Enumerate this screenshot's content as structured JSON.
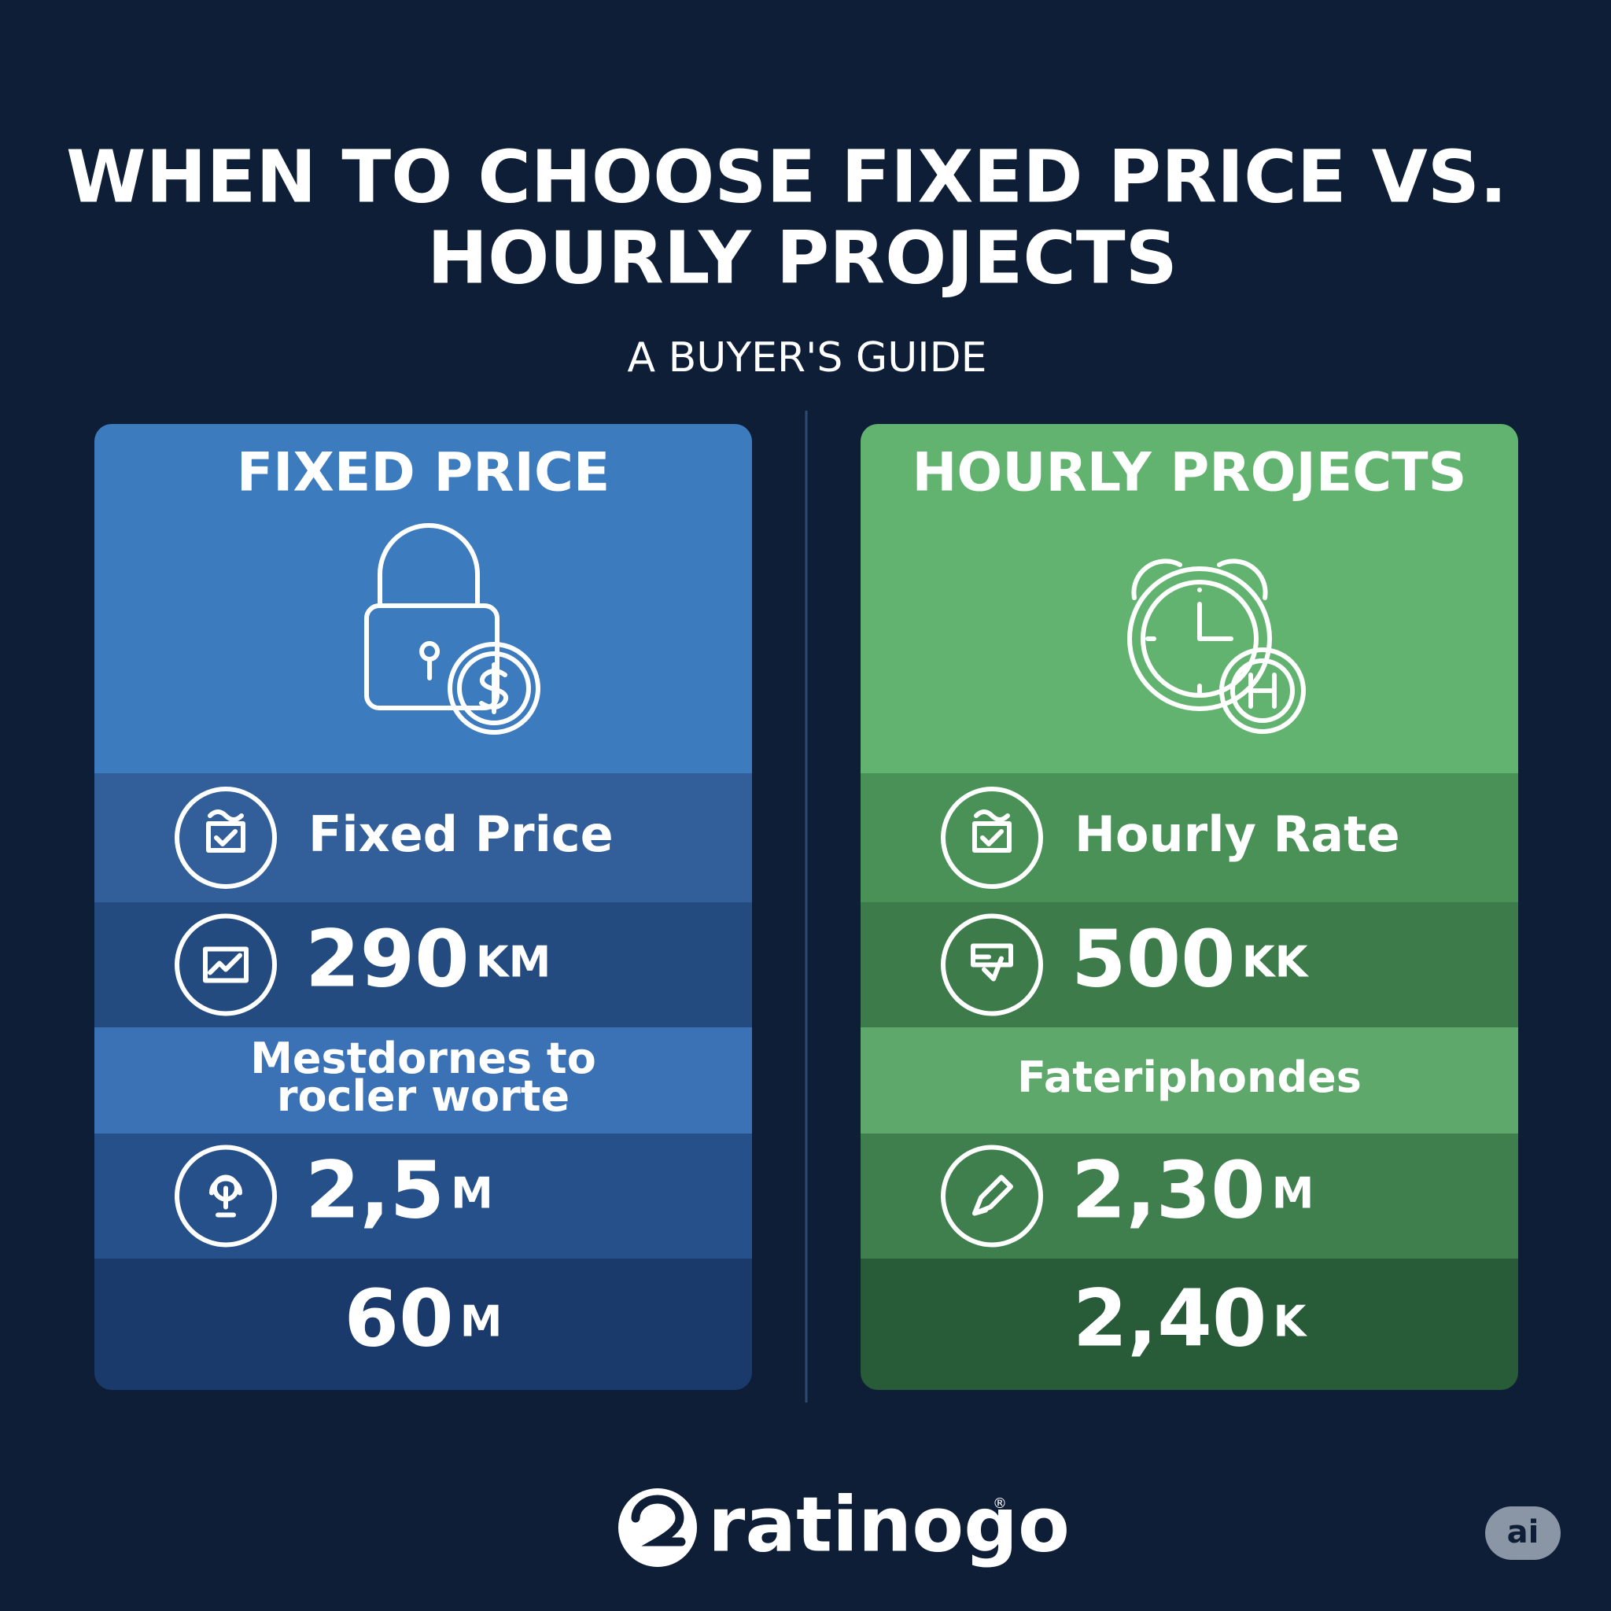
{
  "header": {
    "title_line1": "WHEN TO CHOOSE FIXED PRICE VS.",
    "title_line2": "HOURLY PROJECTS",
    "subtitle": "A BUYER'S GUIDE"
  },
  "columns": [
    {
      "title": "FIXED PRICE",
      "rows": [
        {
          "text": "Fixed Price"
        },
        {
          "value": "290",
          "unit": "KM"
        },
        {
          "lines": [
            "Mestdornes to",
            "rocler worte"
          ]
        },
        {
          "value": "2,5",
          "unit": "M"
        },
        {
          "value": "60",
          "unit": "M"
        }
      ]
    },
    {
      "title": "HOURLY PROJECTS",
      "rows": [
        {
          "text": "Hourly Rate"
        },
        {
          "value": "500",
          "unit": "KK"
        },
        {
          "lines": [
            "Fateriphondes"
          ]
        },
        {
          "value": "2,30",
          "unit": "M"
        },
        {
          "value": "2,40",
          "unit": "K"
        }
      ]
    }
  ],
  "footer": {
    "brand": "ratinogo",
    "registered": "®",
    "badge": "ai"
  }
}
